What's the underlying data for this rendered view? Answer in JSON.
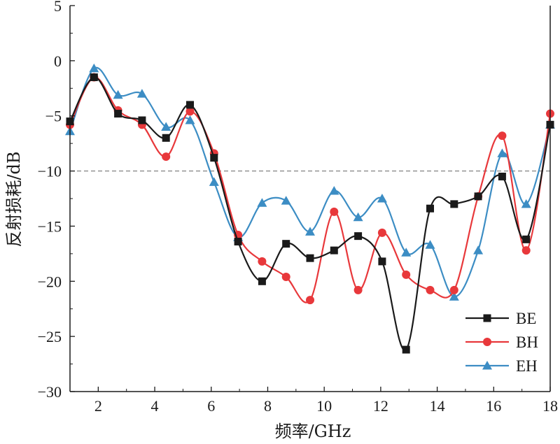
{
  "chart_data": {
    "type": "line",
    "xlabel": "频率/GHz",
    "ylabel": "反射损耗/dB",
    "xlim": [
      1,
      18
    ],
    "ylim": [
      -30,
      5
    ],
    "xticks": [
      2,
      4,
      6,
      8,
      10,
      12,
      14,
      16,
      18
    ],
    "yticks": [
      5,
      0,
      -5,
      -10,
      -15,
      -20,
      -25,
      -30
    ],
    "tick_labels": {
      "x": [
        "2",
        "4",
        "6",
        "8",
        "10",
        "12",
        "14",
        "16",
        "18"
      ],
      "y": [
        "5",
        "0",
        "−5",
        "−10",
        "−15",
        "−20",
        "−25",
        "−30"
      ]
    },
    "reference_line": -10,
    "legend_position": "bottom-right",
    "series": [
      {
        "name": "BE",
        "color": "#1a1a1a",
        "marker": "square",
        "x": [
          1.0,
          1.85,
          2.7,
          3.55,
          4.4,
          5.25,
          6.1,
          6.95,
          7.8,
          8.65,
          9.5,
          10.35,
          11.2,
          12.05,
          12.9,
          13.75,
          14.6,
          15.45,
          16.3,
          17.15,
          18.0
        ],
        "y": [
          -5.5,
          -1.5,
          -4.8,
          -5.4,
          -7.0,
          -4.0,
          -8.8,
          -16.4,
          -20.0,
          -16.6,
          -17.9,
          -17.2,
          -15.9,
          -18.2,
          -26.2,
          -13.4,
          -13.0,
          -12.3,
          -10.5,
          -16.2,
          -5.8
        ]
      },
      {
        "name": "BH",
        "color": "#e8383b",
        "marker": "circle",
        "x": [
          1.0,
          1.85,
          2.7,
          3.55,
          4.4,
          5.25,
          6.1,
          6.95,
          7.8,
          8.65,
          9.5,
          10.35,
          11.2,
          12.05,
          12.9,
          13.75,
          14.6,
          15.45,
          16.3,
          17.15,
          18.0
        ],
        "y": [
          -5.8,
          -1.5,
          -4.5,
          -5.8,
          -8.7,
          -4.6,
          -8.4,
          -15.8,
          -18.2,
          -19.6,
          -21.7,
          -13.7,
          -20.8,
          -15.6,
          -19.4,
          -20.8,
          -20.8,
          -12.3,
          -6.8,
          -17.2,
          -4.8
        ]
      },
      {
        "name": "EH",
        "color": "#3c8dc4",
        "marker": "triangle",
        "x": [
          1.0,
          1.85,
          2.7,
          3.55,
          4.4,
          5.25,
          6.1,
          6.95,
          7.8,
          8.65,
          9.5,
          10.35,
          11.2,
          12.05,
          12.9,
          13.75,
          14.6,
          15.45,
          16.3,
          17.15,
          18.0
        ],
        "y": [
          -6.4,
          -0.7,
          -3.1,
          -3.0,
          -6.0,
          -5.4,
          -11.0,
          -16.0,
          -12.9,
          -12.7,
          -15.5,
          -11.8,
          -14.2,
          -12.5,
          -17.4,
          -16.7,
          -21.4,
          -17.2,
          -8.4,
          -13.0,
          -5.8
        ]
      }
    ]
  }
}
